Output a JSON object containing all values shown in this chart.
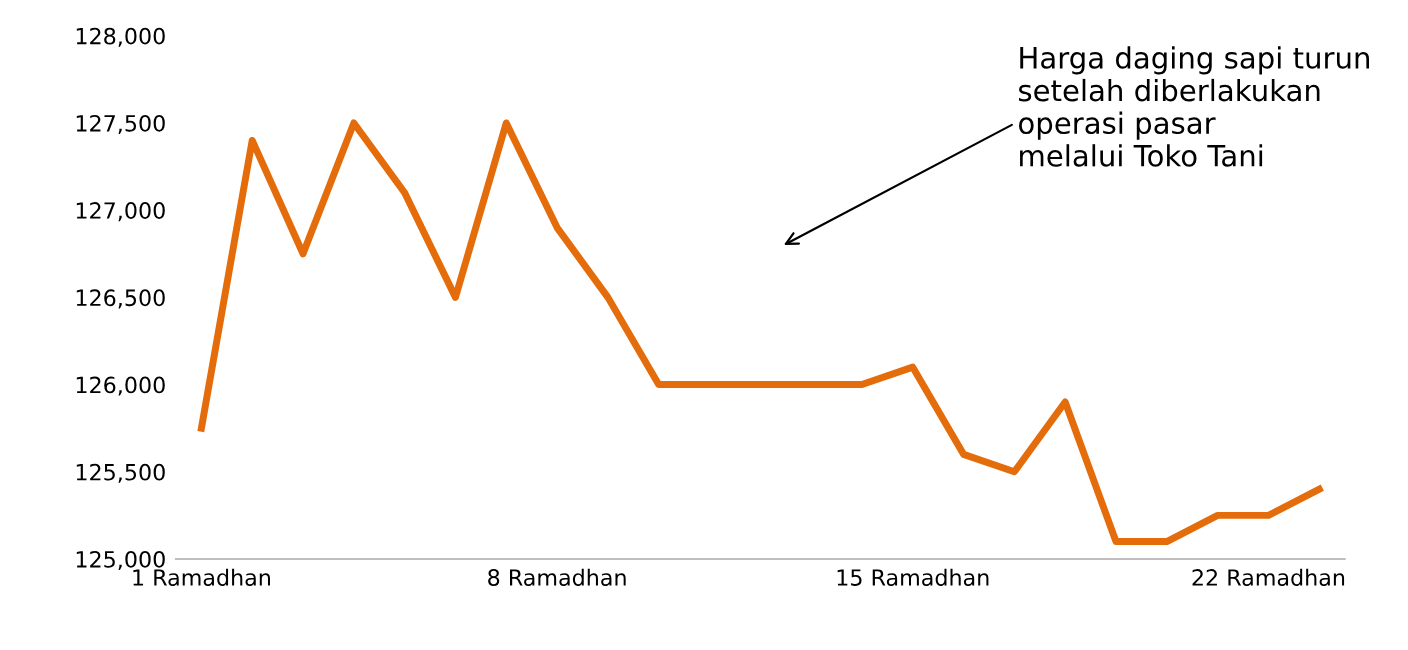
{
  "chart_data": {
    "type": "line",
    "categories": [
      "1 Ramadhan",
      null,
      null,
      null,
      null,
      null,
      null,
      "8 Ramadhan",
      null,
      null,
      null,
      null,
      null,
      null,
      "15 Ramadhan",
      null,
      null,
      null,
      null,
      null,
      null,
      "22 Ramadhan",
      null
    ],
    "series": [
      {
        "color": "#e46c0a",
        "values": [
          125750,
          127400,
          126750,
          127500,
          127100,
          126500,
          127500,
          126900,
          126500,
          126000,
          126000,
          126000,
          126000,
          126000,
          126100,
          125600,
          125500,
          125900,
          125100,
          125100,
          125250,
          125250,
          125400
        ]
      }
    ],
    "ylim": [
      125000,
      128000
    ],
    "yticks": [
      {
        "value": 125000,
        "label": "125,000"
      },
      {
        "value": 125500,
        "label": "125,500"
      },
      {
        "value": 126000,
        "label": "126,000"
      },
      {
        "value": 126500,
        "label": "126,500"
      },
      {
        "value": 127000,
        "label": "127,000"
      },
      {
        "value": 127500,
        "label": "127,500"
      },
      {
        "value": 128000,
        "label": "128,000"
      }
    ],
    "grid": false,
    "marker": "none",
    "line_style": "solid",
    "annotations": [
      "Harga daging sapi turun\nsetelah diberlakukan\noperasi pasar\nmelalui Toko Tani"
    ]
  }
}
